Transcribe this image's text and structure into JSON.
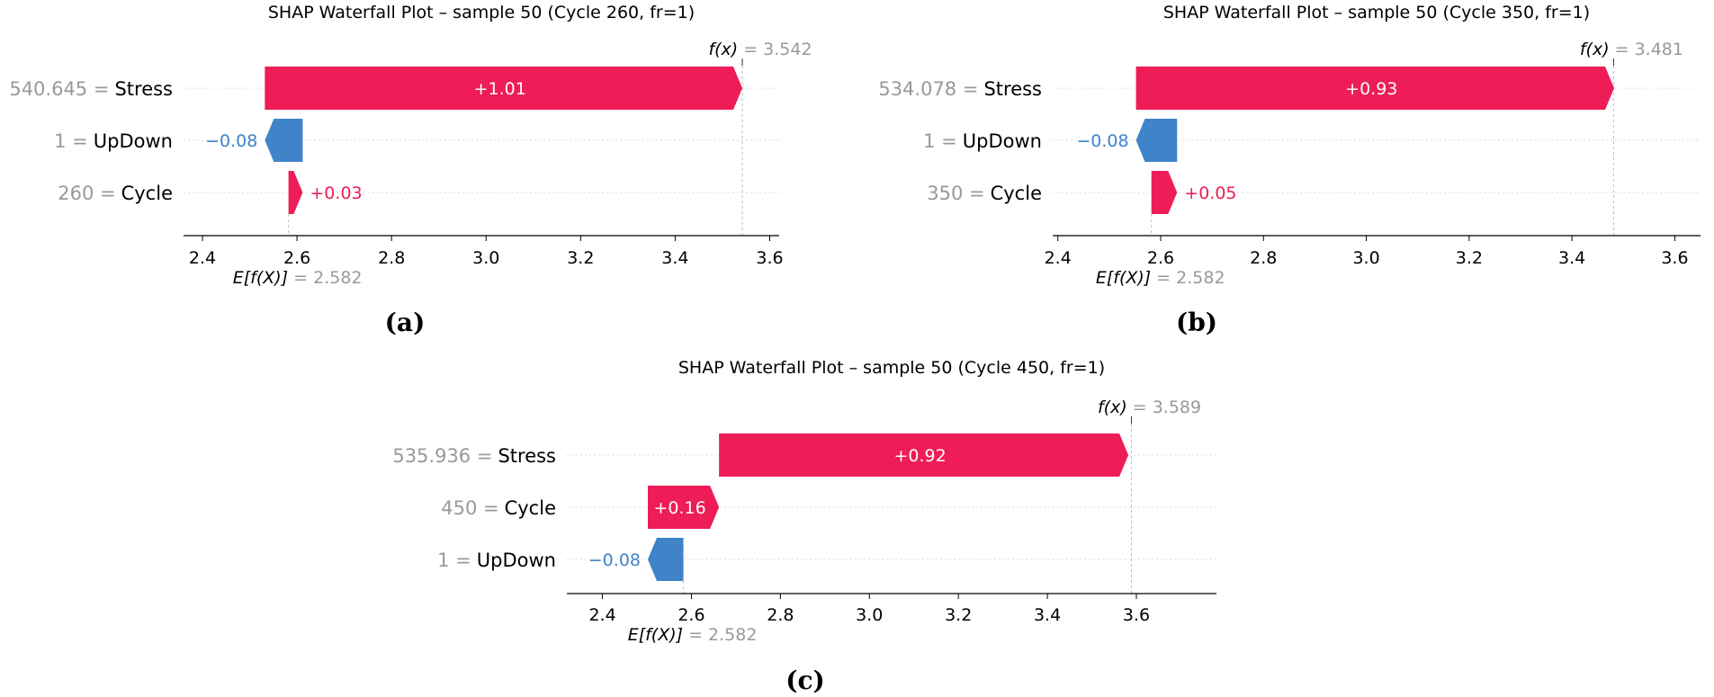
{
  "colors": {
    "positive": "#ee1c57",
    "negative": "#3f84c8",
    "muted": "#999999"
  },
  "chart_data": [
    {
      "type": "waterfall",
      "panel": "a",
      "title": "SHAP Waterfall Plot – sample 50 (Cycle 260, fr=1)",
      "caption": "(a)",
      "base_value": 2.582,
      "base_value_text": "= 2.582",
      "base_label": "E[f(X)]",
      "output_value": 3.542,
      "output_value_text": "= 3.542",
      "output_label": "f(x)",
      "xlim": [
        2.36,
        3.62
      ],
      "xticks": [
        2.4,
        2.6,
        2.8,
        3.0,
        3.2,
        3.4,
        3.6
      ],
      "xtick_labels": [
        "2.4",
        "2.6",
        "2.8",
        "3.0",
        "3.2",
        "3.4",
        "3.6"
      ],
      "features": [
        {
          "value": "540.645 =",
          "name": "Stress",
          "shap": 1.01,
          "label": "+1.01"
        },
        {
          "value": "1 =",
          "name": "UpDown",
          "shap": -0.08,
          "label": "−0.08"
        },
        {
          "value": "260 =",
          "name": "Cycle",
          "shap": 0.03,
          "label": "+0.03"
        }
      ]
    },
    {
      "type": "waterfall",
      "panel": "b",
      "title": "SHAP Waterfall Plot – sample 50 (Cycle 350, fr=1)",
      "caption": "(b)",
      "base_value": 2.582,
      "base_value_text": "= 2.582",
      "base_label": "E[f(X)]",
      "output_value": 3.481,
      "output_value_text": "= 3.481",
      "output_label": "f(x)",
      "xlim": [
        2.39,
        3.65
      ],
      "xticks": [
        2.4,
        2.6,
        2.8,
        3.0,
        3.2,
        3.4,
        3.6
      ],
      "xtick_labels": [
        "2.4",
        "2.6",
        "2.8",
        "3.0",
        "3.2",
        "3.4",
        "3.6"
      ],
      "features": [
        {
          "value": "534.078 =",
          "name": "Stress",
          "shap": 0.93,
          "label": "+0.93"
        },
        {
          "value": "1 =",
          "name": "UpDown",
          "shap": -0.08,
          "label": "−0.08"
        },
        {
          "value": "350 =",
          "name": "Cycle",
          "shap": 0.05,
          "label": "+0.05"
        }
      ]
    },
    {
      "type": "waterfall",
      "panel": "c",
      "title": "SHAP Waterfall Plot – sample 50 (Cycle 450, fr=1)",
      "caption": "(c)",
      "base_value": 2.582,
      "base_value_text": "= 2.582",
      "base_label": "E[f(X)]",
      "output_value": 3.589,
      "output_value_text": "= 3.589",
      "output_label": "f(x)",
      "xlim": [
        2.32,
        3.78
      ],
      "xticks": [
        2.4,
        2.6,
        2.8,
        3.0,
        3.2,
        3.4,
        3.6
      ],
      "xtick_labels": [
        "2.4",
        "2.6",
        "2.8",
        "3.0",
        "3.2",
        "3.4",
        "3.6"
      ],
      "features": [
        {
          "value": "535.936 =",
          "name": "Stress",
          "shap": 0.92,
          "label": "+0.92"
        },
        {
          "value": "450 =",
          "name": "Cycle",
          "shap": 0.16,
          "label": "+0.16"
        },
        {
          "value": "1 =",
          "name": "UpDown",
          "shap": -0.08,
          "label": "−0.08"
        }
      ]
    }
  ]
}
